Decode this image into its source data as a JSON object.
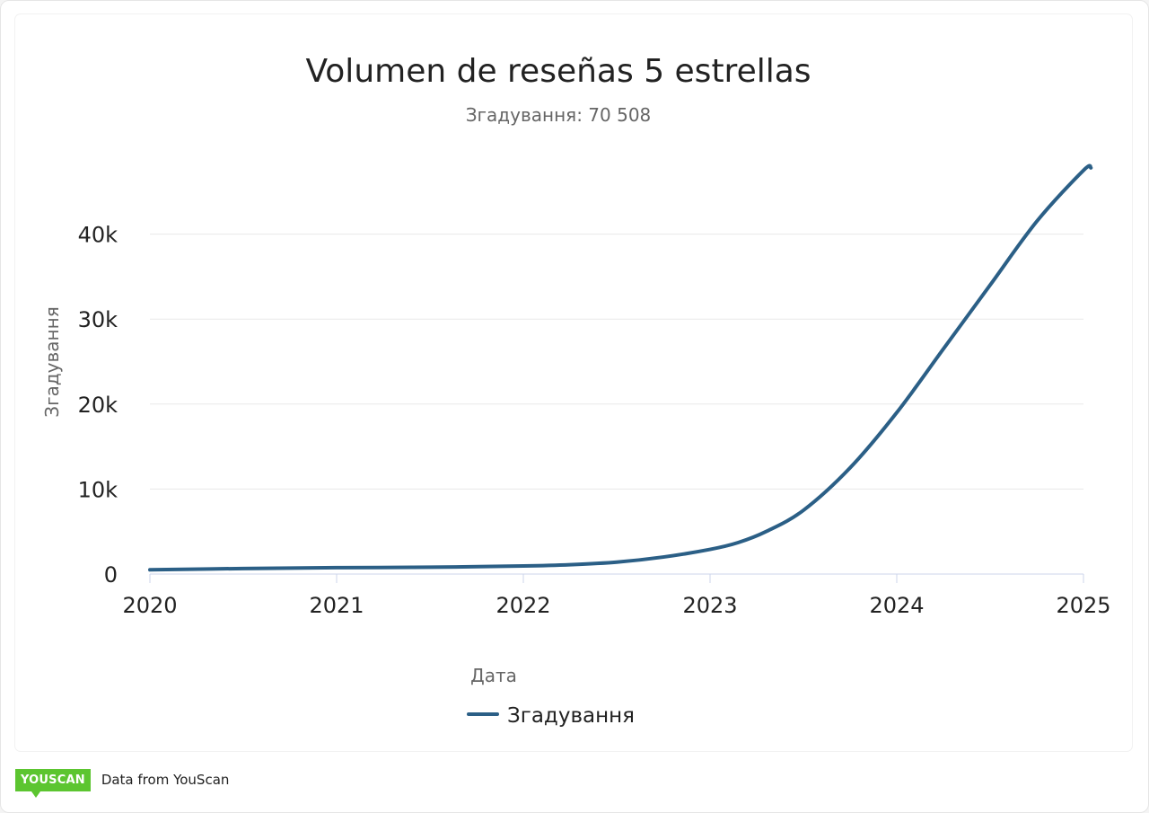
{
  "chart_data": {
    "type": "line",
    "title": "Volumen de reseñas 5 estrellas",
    "subtitle": "Згадування: 70 508",
    "xlabel": "Дата",
    "ylabel": "Згадування",
    "x_ticks": [
      "2020",
      "2021",
      "2022",
      "2023",
      "2024",
      "2025"
    ],
    "y_ticks": [
      "0",
      "10k",
      "20k",
      "30k",
      "40k"
    ],
    "xlim": [
      2020,
      2025
    ],
    "ylim": [
      0,
      50000
    ],
    "grid": true,
    "legend_position": "bottom",
    "series": [
      {
        "name": "Згадування",
        "color": "#2b5f86",
        "x": [
          2020.0,
          2020.5,
          2021.0,
          2021.5,
          2022.0,
          2022.25,
          2022.5,
          2022.75,
          2023.0,
          2023.15,
          2023.3,
          2023.5,
          2023.75,
          2024.0,
          2024.25,
          2024.5,
          2024.75,
          2025.0,
          2025.04
        ],
        "values": [
          500,
          650,
          750,
          800,
          950,
          1100,
          1400,
          2000,
          2900,
          3700,
          5000,
          7500,
          12500,
          19000,
          26500,
          34000,
          41500,
          47500,
          47800
        ]
      }
    ]
  },
  "footer": {
    "brand": "YOUSCAN",
    "source": "Data from YouScan"
  }
}
